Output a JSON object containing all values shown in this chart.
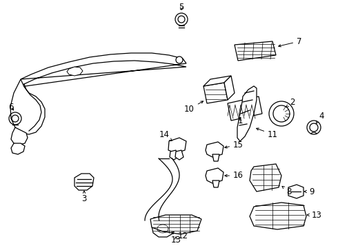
{
  "bg_color": "#ffffff",
  "line_color": "#000000",
  "fig_w": 4.9,
  "fig_h": 3.6,
  "dpi": 100
}
